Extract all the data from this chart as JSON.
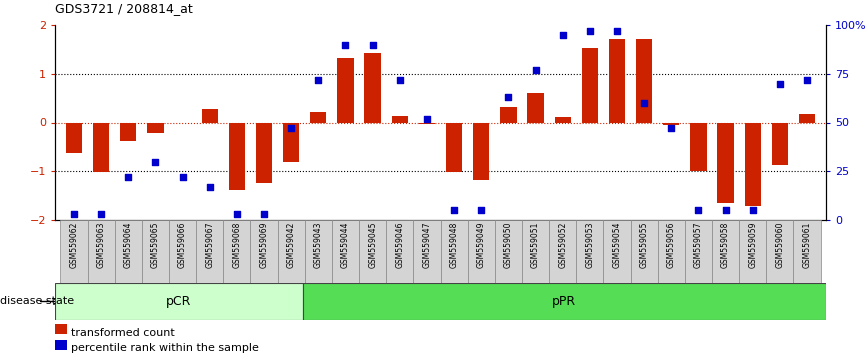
{
  "title": "GDS3721 / 208814_at",
  "samples": [
    "GSM559062",
    "GSM559063",
    "GSM559064",
    "GSM559065",
    "GSM559066",
    "GSM559067",
    "GSM559068",
    "GSM559069",
    "GSM559042",
    "GSM559043",
    "GSM559044",
    "GSM559045",
    "GSM559046",
    "GSM559047",
    "GSM559048",
    "GSM559049",
    "GSM559050",
    "GSM559051",
    "GSM559052",
    "GSM559053",
    "GSM559054",
    "GSM559055",
    "GSM559056",
    "GSM559057",
    "GSM559058",
    "GSM559059",
    "GSM559060",
    "GSM559061"
  ],
  "transformed_count": [
    -0.62,
    -1.02,
    -0.38,
    -0.22,
    0.0,
    0.27,
    -1.38,
    -1.25,
    -0.82,
    0.22,
    1.32,
    1.42,
    0.13,
    -0.03,
    -1.02,
    -1.18,
    0.32,
    0.6,
    0.12,
    1.52,
    1.72,
    1.72,
    -0.05,
    -1.0,
    -1.65,
    -1.72,
    -0.88,
    0.18
  ],
  "percentile_rank": [
    3,
    3,
    22,
    30,
    22,
    17,
    3,
    3,
    47,
    72,
    90,
    90,
    72,
    52,
    5,
    5,
    63,
    77,
    95,
    97,
    97,
    60,
    47,
    5,
    5,
    5,
    70,
    72
  ],
  "pCR_count": 9,
  "pPR_count": 19,
  "bar_color": "#cc2200",
  "dot_color": "#0000cc",
  "background_color": "#ffffff",
  "pCR_color": "#ccffcc",
  "pPR_color": "#55dd55",
  "ylim": [
    -2,
    2
  ],
  "y2lim": [
    0,
    100
  ],
  "zero_line_color": "#cc2200"
}
